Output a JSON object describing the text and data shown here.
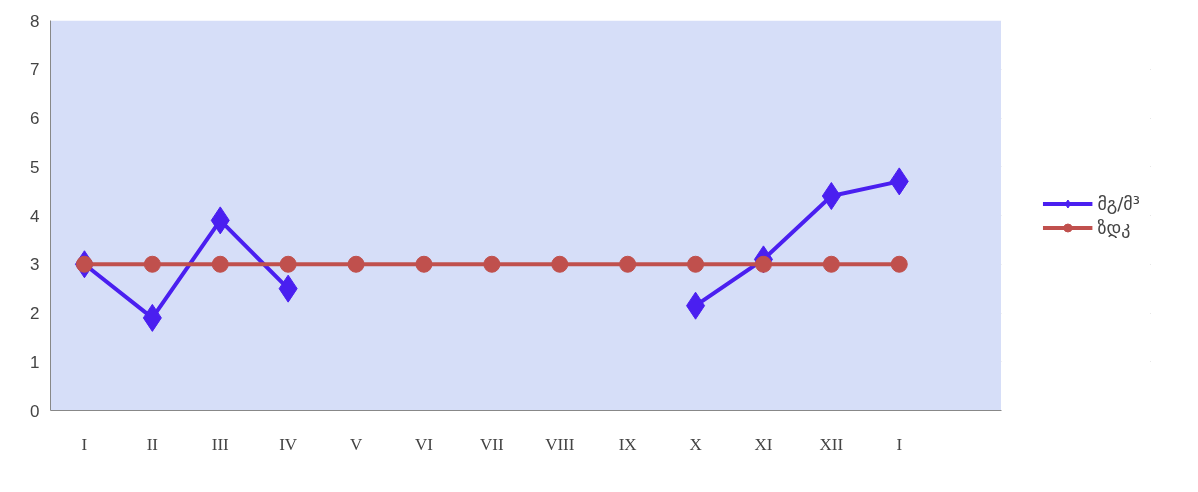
{
  "chart_data": {
    "type": "line",
    "categories": [
      "I",
      "II",
      "III",
      "IV",
      "V",
      "VI",
      "VII",
      "VIII",
      "IX",
      "X",
      "XI",
      "XII",
      "I",
      null
    ],
    "series": [
      {
        "name": "მგ/მ³",
        "color": "#4a1ff0",
        "marker": "diamond",
        "values": [
          3,
          1.9,
          3.9,
          2.5,
          null,
          null,
          null,
          null,
          null,
          2.15,
          3.1,
          4.4,
          4.7,
          null
        ]
      },
      {
        "name": "ზდკ",
        "color": "#c0504d",
        "marker": "circle",
        "values": [
          3,
          3,
          3,
          3,
          3,
          3,
          3,
          3,
          3,
          3,
          3,
          3,
          3,
          null
        ]
      }
    ],
    "ylim": [
      0,
      8
    ],
    "yticks": [
      0,
      1,
      2,
      3,
      4,
      5,
      6,
      7,
      8
    ],
    "grid": "y",
    "legend": "right"
  }
}
